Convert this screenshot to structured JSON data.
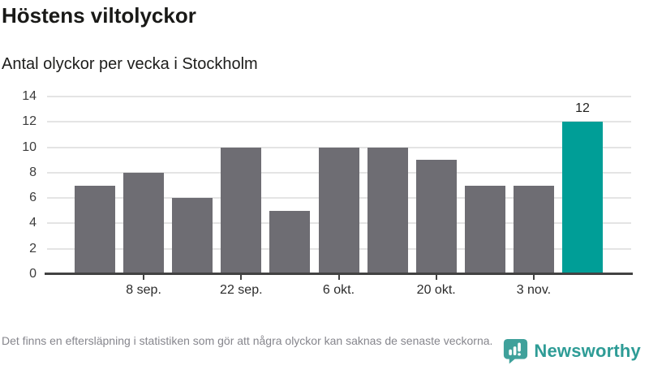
{
  "header": {
    "title": "Höstens viltolyckor",
    "subtitle": "Antal olyckor per vecka i Stockholm"
  },
  "chart_data": {
    "type": "bar",
    "title": "Höstens viltolyckor",
    "subtitle": "Antal olyckor per vecka i Stockholm",
    "values": [
      7,
      8,
      6,
      10,
      5,
      10,
      10,
      9,
      7,
      7,
      12
    ],
    "x_tick_labels": [
      {
        "index": 1,
        "label": "8 sep."
      },
      {
        "index": 3,
        "label": "22 sep."
      },
      {
        "index": 5,
        "label": "6 okt."
      },
      {
        "index": 7,
        "label": "20 okt."
      },
      {
        "index": 9,
        "label": "3 nov."
      }
    ],
    "y_ticks": [
      0,
      2,
      4,
      6,
      8,
      10,
      12,
      14
    ],
    "ylim": [
      0,
      14
    ],
    "grid": "horizontal",
    "legend": "none",
    "highlight_index": 10,
    "value_labels": [
      {
        "index": 10,
        "label": "12"
      }
    ],
    "colors": {
      "bar": "#6e6d73",
      "highlight": "#009e97",
      "gridline": "#e4e4e4",
      "axis": "#424242"
    }
  },
  "footer": {
    "note": "Det finns en eftersläpning i statistiken som gör att några olyckor kan saknas de senaste veckorna.",
    "brand_name": "Newsworthy",
    "brand_color": "#2e9c96",
    "logo_icon": "bar-chart-speech-bubble"
  }
}
